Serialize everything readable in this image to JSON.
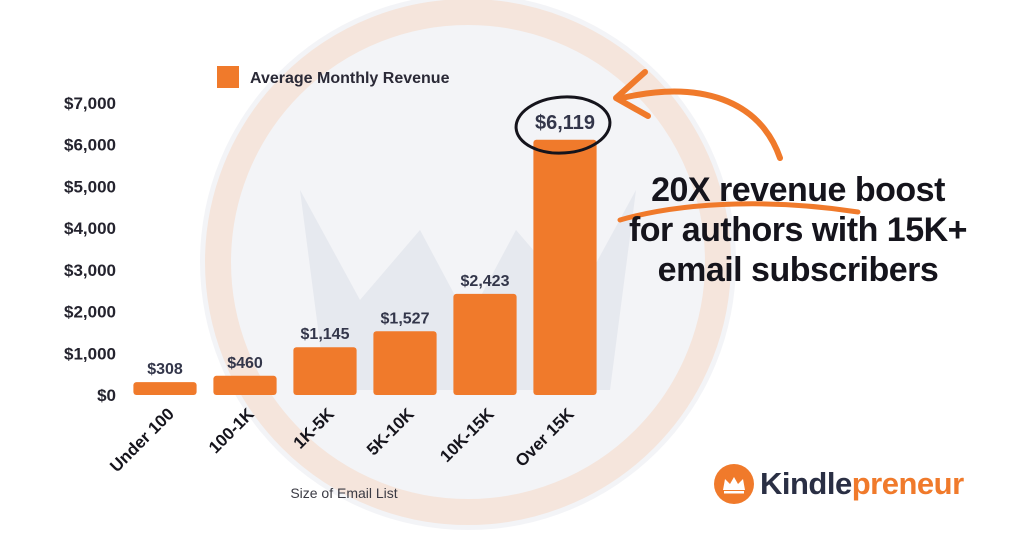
{
  "chart_data": {
    "type": "bar",
    "categories": [
      "Under 100",
      "100-1K",
      "1K-5K",
      "5K-10K",
      "10K-15K",
      "Over 15K"
    ],
    "values": [
      308,
      460,
      1145,
      1527,
      2423,
      6119
    ],
    "value_labels": [
      "$308",
      "$460",
      "$1,145",
      "$1,527",
      "$2,423",
      "$6,119"
    ],
    "series_name": "Average Monthly Revenue",
    "xlabel": "Size of Email List",
    "ylabel": "",
    "ylim": [
      0,
      7000
    ],
    "yticks": [
      0,
      1000,
      2000,
      3000,
      4000,
      5000,
      6000,
      7000
    ],
    "ytick_labels": [
      "$0",
      "$1,000",
      "$2,000",
      "$3,000",
      "$4,000",
      "$5,000",
      "$6,000",
      "$7,000"
    ],
    "highlight_index": 5,
    "legend_position": "top",
    "grid": false,
    "bar_color": "#f07a2b"
  },
  "headline": {
    "line1": "20X revenue boost",
    "line2": "for authors with 15K+",
    "line3": "email subscribers"
  },
  "brand": {
    "name_part1": "Kindle",
    "name_part2": "preneur",
    "accent": "#f07a2b",
    "dark": "#2a2f44"
  }
}
